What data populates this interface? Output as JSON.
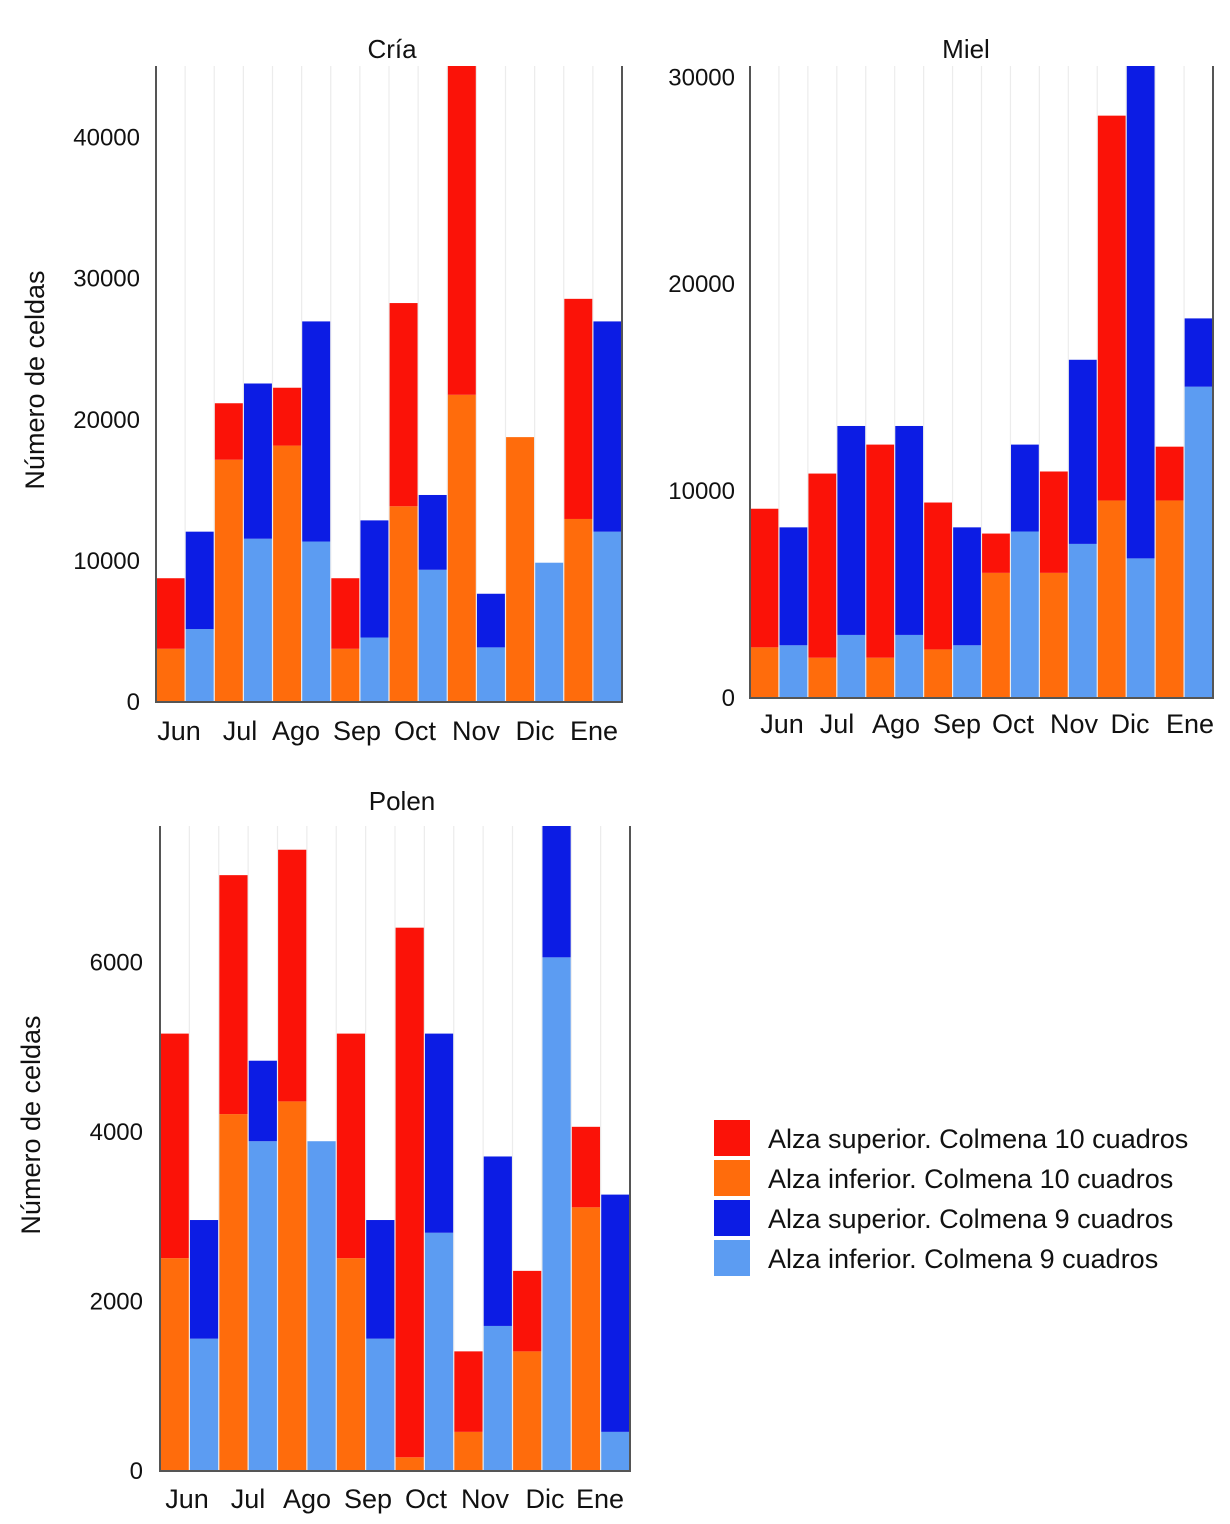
{
  "colors": {
    "alza_sup_10": "#fb1208",
    "alza_inf_10": "#ff6c0c",
    "alza_sup_9": "#0c1ce4",
    "alza_inf_9": "#5c9cf2"
  },
  "legend": [
    {
      "label": "Alza superior. Colmena 10 cuadros",
      "color_key": "alza_sup_10"
    },
    {
      "label": "Alza inferior. Colmena 10 cuadros",
      "color_key": "alza_inf_10"
    },
    {
      "label": "Alza superior. Colmena 9 cuadros",
      "color_key": "alza_sup_9"
    },
    {
      "label": "Alza inferior. Colmena 9 cuadros",
      "color_key": "alza_inf_9"
    }
  ],
  "chart_data": [
    {
      "type": "bar",
      "stacked": true,
      "title": "Cría",
      "ylabel": "Número de celdas",
      "ylim": [
        0,
        45000
      ],
      "yticks": [
        "0",
        "10000",
        "20000",
        "30000",
        "40000"
      ],
      "xticks": [
        "Jun",
        "Jul",
        "Ago",
        "Sep",
        "Oct",
        "Nov",
        "Dic",
        "Ene"
      ],
      "bars": [
        {
          "hive": "10",
          "inferior": 3700,
          "superior": 5000
        },
        {
          "hive": "9",
          "inferior": 5100,
          "superior": 6900
        },
        {
          "hive": "10",
          "inferior": 17100,
          "superior": 4000
        },
        {
          "hive": "9",
          "inferior": 11500,
          "superior": 11000
        },
        {
          "hive": "10",
          "inferior": 18100,
          "superior": 4100
        },
        {
          "hive": "9",
          "inferior": 11300,
          "superior": 15600
        },
        {
          "hive": "10",
          "inferior": 3700,
          "superior": 5000
        },
        {
          "hive": "9",
          "inferior": 4500,
          "superior": 8300
        },
        {
          "hive": "10",
          "inferior": 13800,
          "superior": 14400
        },
        {
          "hive": "9",
          "inferior": 9300,
          "superior": 5300
        },
        {
          "hive": "10",
          "inferior": 21700,
          "superior": 23300
        },
        {
          "hive": "9",
          "inferior": 3800,
          "superior": 3800
        },
        {
          "hive": "10",
          "inferior": 18700,
          "superior": 0
        },
        {
          "hive": "9",
          "inferior": 9800,
          "superior": 0
        },
        {
          "hive": "10",
          "inferior": 12900,
          "superior": 15600
        },
        {
          "hive": "9",
          "inferior": 12000,
          "superior": 14900
        }
      ]
    },
    {
      "type": "bar",
      "stacked": true,
      "title": "Miel",
      "ylabel": "",
      "ylim": [
        0,
        30500
      ],
      "yticks": [
        "0",
        "10000",
        "20000",
        "30000"
      ],
      "xticks": [
        "Jun",
        "Jul",
        "Ago",
        "Sep",
        "Oct",
        "Nov",
        "Dic",
        "Ene"
      ],
      "bars": [
        {
          "hive": "10",
          "inferior": 2400,
          "superior": 6700
        },
        {
          "hive": "9",
          "inferior": 2500,
          "superior": 5700
        },
        {
          "hive": "10",
          "inferior": 1900,
          "superior": 8900
        },
        {
          "hive": "9",
          "inferior": 3000,
          "superior": 10100
        },
        {
          "hive": "10",
          "inferior": 1900,
          "superior": 10300
        },
        {
          "hive": "9",
          "inferior": 3000,
          "superior": 10100
        },
        {
          "hive": "10",
          "inferior": 2300,
          "superior": 7100
        },
        {
          "hive": "9",
          "inferior": 2500,
          "superior": 5700
        },
        {
          "hive": "10",
          "inferior": 6000,
          "superior": 1900
        },
        {
          "hive": "9",
          "inferior": 8000,
          "superior": 4200
        },
        {
          "hive": "10",
          "inferior": 6000,
          "superior": 4900
        },
        {
          "hive": "9",
          "inferior": 7400,
          "superior": 8900
        },
        {
          "hive": "10",
          "inferior": 9500,
          "superior": 18600
        },
        {
          "hive": "9",
          "inferior": 6700,
          "superior": 24300
        },
        {
          "hive": "10",
          "inferior": 9500,
          "superior": 2600
        },
        {
          "hive": "9",
          "inferior": 15000,
          "superior": 3300
        }
      ]
    },
    {
      "type": "bar",
      "stacked": true,
      "title": "Polen",
      "ylabel": "Número de celdas",
      "ylim": [
        0,
        7600
      ],
      "yticks": [
        "0",
        "2000",
        "4000",
        "6000"
      ],
      "xticks": [
        "Jun",
        "Jul",
        "Ago",
        "Sep",
        "Oct",
        "Nov",
        "Dic",
        "Ene"
      ],
      "bars": [
        {
          "hive": "10",
          "inferior": 2500,
          "superior": 2650
        },
        {
          "hive": "9",
          "inferior": 1550,
          "superior": 1400
        },
        {
          "hive": "10",
          "inferior": 4200,
          "superior": 2820
        },
        {
          "hive": "9",
          "inferior": 3880,
          "superior": 950
        },
        {
          "hive": "10",
          "inferior": 4350,
          "superior": 2970
        },
        {
          "hive": "9",
          "inferior": 3880,
          "superior": 0
        },
        {
          "hive": "10",
          "inferior": 2500,
          "superior": 2650
        },
        {
          "hive": "9",
          "inferior": 1550,
          "superior": 1400
        },
        {
          "hive": "10",
          "inferior": 150,
          "superior": 6250
        },
        {
          "hive": "9",
          "inferior": 2800,
          "superior": 2350
        },
        {
          "hive": "10",
          "inferior": 450,
          "superior": 950
        },
        {
          "hive": "9",
          "inferior": 1700,
          "superior": 2000
        },
        {
          "hive": "10",
          "inferior": 1400,
          "superior": 950
        },
        {
          "hive": "9",
          "inferior": 6050,
          "superior": 1550
        },
        {
          "hive": "10",
          "inferior": 3100,
          "superior": 950
        },
        {
          "hive": "9",
          "inferior": 450,
          "superior": 2800
        }
      ]
    }
  ]
}
